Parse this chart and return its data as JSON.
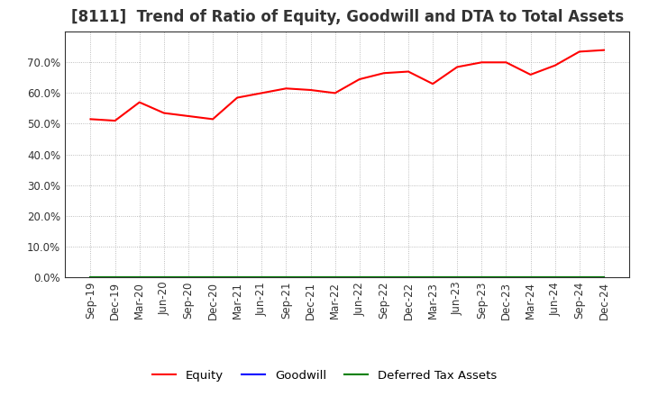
{
  "title": "[8111]  Trend of Ratio of Equity, Goodwill and DTA to Total Assets",
  "x_labels": [
    "Sep-19",
    "Dec-19",
    "Mar-20",
    "Jun-20",
    "Sep-20",
    "Dec-20",
    "Mar-21",
    "Jun-21",
    "Sep-21",
    "Dec-21",
    "Mar-22",
    "Jun-22",
    "Sep-22",
    "Dec-22",
    "Mar-23",
    "Jun-23",
    "Sep-23",
    "Dec-23",
    "Mar-24",
    "Jun-24",
    "Sep-24",
    "Dec-24"
  ],
  "equity": [
    51.5,
    51.0,
    57.0,
    53.5,
    52.5,
    51.5,
    58.5,
    60.0,
    61.5,
    61.0,
    60.0,
    64.5,
    66.5,
    67.0,
    63.0,
    68.5,
    70.0,
    70.0,
    66.0,
    69.0,
    73.5,
    74.0
  ],
  "goodwill": [
    0,
    0,
    0,
    0,
    0,
    0,
    0,
    0,
    0,
    0,
    0,
    0,
    0,
    0,
    0,
    0,
    0,
    0,
    0,
    0,
    0,
    0
  ],
  "deferred_tax_assets": [
    0,
    0,
    0,
    0,
    0,
    0,
    0,
    0,
    0,
    0,
    0,
    0,
    0,
    0,
    0,
    0,
    0,
    0,
    0,
    0,
    0,
    0
  ],
  "equity_color": "#FF0000",
  "goodwill_color": "#0000FF",
  "dta_color": "#008000",
  "ylim": [
    0,
    80
  ],
  "yticks": [
    0,
    10,
    20,
    30,
    40,
    50,
    60,
    70
  ],
  "background_color": "#FFFFFF",
  "plot_bg_color": "#FFFFFF",
  "grid_color": "#AAAAAA",
  "title_fontsize": 12,
  "axis_fontsize": 8.5,
  "legend_fontsize": 9.5,
  "line_width": 1.5
}
